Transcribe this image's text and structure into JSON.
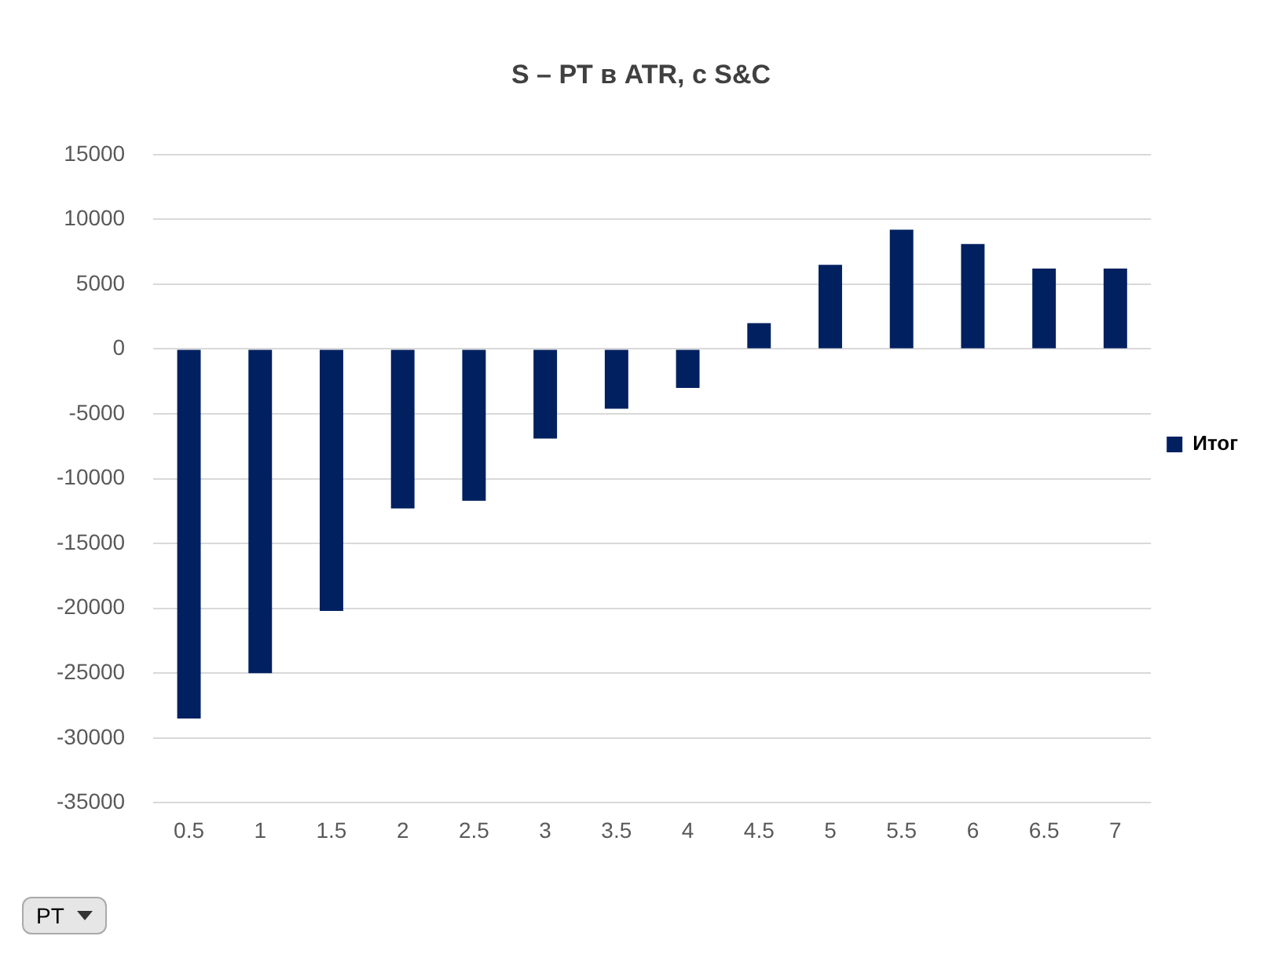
{
  "chart_data": {
    "type": "bar",
    "title": "S – PT в ATR, с S&C",
    "categories": [
      "0.5",
      "1",
      "1.5",
      "2",
      "2.5",
      "3",
      "3.5",
      "4",
      "4.5",
      "5",
      "5.5",
      "6",
      "6.5",
      "7"
    ],
    "series": [
      {
        "name": "Итог",
        "color": "#002060",
        "values": [
          -28500,
          -25000,
          -20200,
          -12300,
          -11700,
          -6900,
          -4600,
          -3000,
          2000,
          6500,
          9200,
          8100,
          6200,
          6200
        ]
      }
    ],
    "ylim": [
      -35000,
      15000
    ],
    "yticks": [
      -35000,
      -30000,
      -25000,
      -20000,
      -15000,
      -10000,
      -5000,
      0,
      5000,
      10000,
      15000
    ],
    "grid": "y",
    "legend": "right",
    "annotations": [
      "PT"
    ]
  }
}
